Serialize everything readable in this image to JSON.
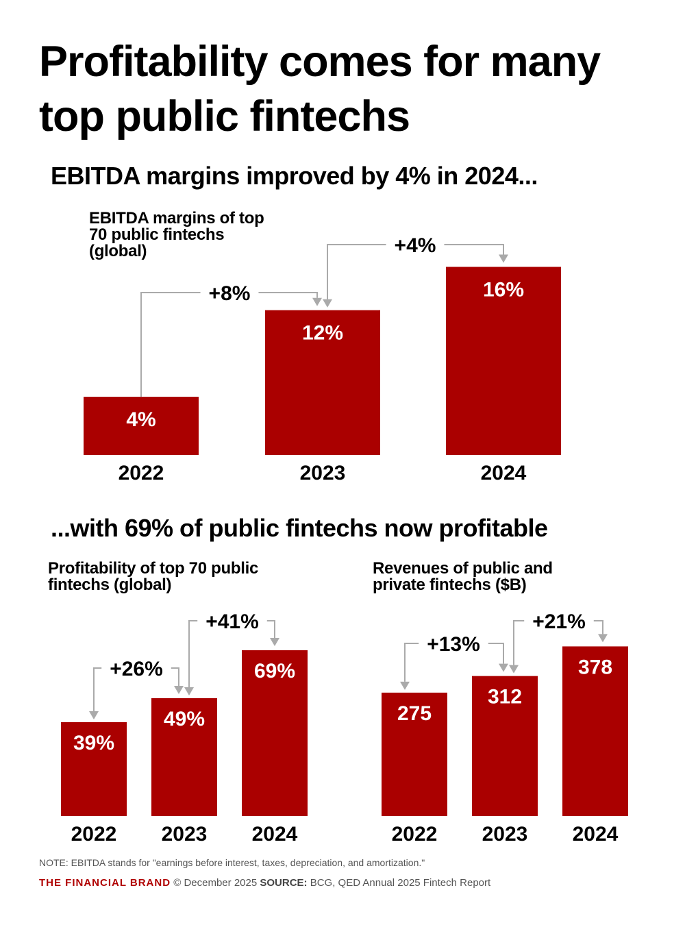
{
  "header": {
    "title": "Profitability comes for many top public fintechs",
    "subtitle_1": "EBITDA margins improved by 4% in 2024...",
    "subtitle_2": "...with 69% of public fintechs now profitable"
  },
  "colors": {
    "bar": "#aa0000",
    "arrow": "#aaaaaa",
    "brand": "#b00000"
  },
  "chart_data": [
    {
      "type": "bar",
      "title": "EBITDA margins of top 70 public fintechs (global)",
      "categories": [
        "2022",
        "2023",
        "2024"
      ],
      "values": [
        4,
        12,
        16
      ],
      "data_labels": [
        "4%",
        "12%",
        "16%"
      ],
      "changes": [
        "+8%",
        "+4%"
      ],
      "unit": "%"
    },
    {
      "type": "bar",
      "title": "Profitability of top 70 public fintechs (global)",
      "categories": [
        "2022",
        "2023",
        "2024"
      ],
      "values": [
        39,
        49,
        69
      ],
      "data_labels": [
        "39%",
        "49%",
        "69%"
      ],
      "changes": [
        "+26%",
        "+41%"
      ],
      "unit": "%"
    },
    {
      "type": "bar",
      "title": "Revenues of public and private fintechs ($B)",
      "categories": [
        "2022",
        "2023",
        "2024"
      ],
      "values": [
        275,
        312,
        378
      ],
      "data_labels": [
        "275",
        "312",
        "378"
      ],
      "changes": [
        "+13%",
        "+21%"
      ],
      "unit": "$B"
    }
  ],
  "footer": {
    "note": "NOTE: EBITDA stands for \"earnings before interest, taxes, depreciation, and amortization.\"",
    "brand": "THE FINANCIAL BRAND",
    "copyright": "© December 2025",
    "source_label": "SOURCE:",
    "source": "BCG, QED Annual 2025 Fintech Report"
  }
}
